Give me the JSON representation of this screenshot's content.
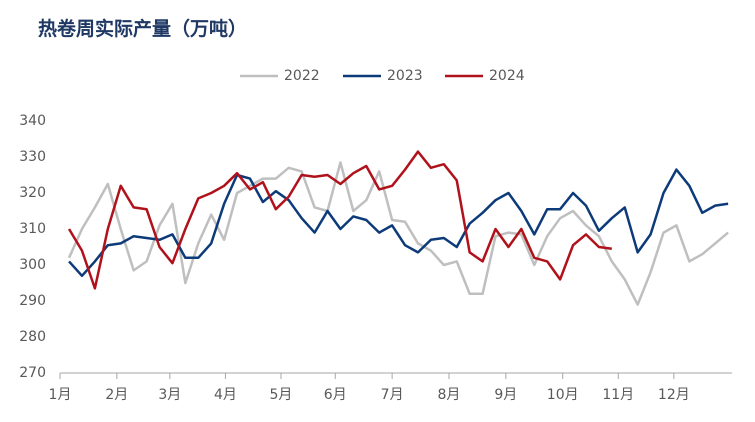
{
  "chart_data": {
    "type": "line",
    "title": "热卷周实际产量（万吨）",
    "x": [
      1,
      2,
      3,
      4,
      5,
      6,
      7,
      8,
      9,
      10,
      11,
      12,
      13,
      14,
      15,
      16,
      17,
      18,
      19,
      20,
      21,
      22,
      23,
      24,
      25,
      26,
      27,
      28,
      29,
      30,
      31,
      32,
      33,
      34,
      35,
      36,
      37,
      38,
      39,
      40,
      41,
      42,
      43,
      44,
      45,
      46,
      47,
      48,
      49,
      50,
      51,
      52
    ],
    "series": [
      {
        "name": "2022",
        "color": "#bfbfbf",
        "values": [
          302,
          310,
          316,
          322.5,
          310,
          298.5,
          301,
          311,
          317,
          295,
          306,
          314,
          307,
          320,
          322,
          324,
          324,
          327,
          326,
          316,
          315,
          328.5,
          315,
          318,
          326,
          312.5,
          312,
          306,
          304,
          300,
          301,
          292,
          292,
          308,
          309,
          308.5,
          300,
          308,
          313,
          315,
          311,
          308,
          301,
          296,
          289,
          298,
          309,
          311,
          301,
          303,
          306,
          309
        ]
      },
      {
        "name": "2023",
        "color": "#0d3b7a",
        "values": [
          301,
          297,
          301,
          305.5,
          306,
          308,
          307.5,
          307,
          308.5,
          302,
          302,
          306,
          317,
          325,
          324,
          317.5,
          320.5,
          318,
          313,
          309,
          315,
          310,
          313.5,
          312.5,
          309,
          311,
          305.5,
          303.5,
          307,
          307.5,
          305,
          311.5,
          314.5,
          318,
          320,
          315,
          308.5,
          315.5,
          315.5,
          320,
          316.5,
          309.5,
          313,
          316,
          303.5,
          308.5,
          320,
          326.5,
          322,
          314.5,
          316.5,
          317
        ]
      },
      {
        "name": "2024",
        "color": "#b0121b",
        "values": [
          310,
          304,
          293.5,
          310,
          322,
          316,
          315.5,
          305,
          300.5,
          310,
          318.5,
          320,
          322,
          325.5,
          321,
          323,
          315.5,
          319,
          325,
          324.5,
          325,
          322.5,
          325.5,
          327.5,
          321,
          322,
          326.5,
          331.5,
          327,
          328,
          323.5,
          303.5,
          301,
          310,
          305,
          310,
          302,
          301,
          296,
          305.5,
          308.5,
          305,
          304.5,
          null,
          null,
          null,
          null,
          null,
          null,
          null,
          null,
          null
        ]
      }
    ],
    "xlim": [
      0.3,
      52.3
    ],
    "xticks": [
      {
        "value": 0.3,
        "label": "1月"
      },
      {
        "value": 4.7,
        "label": "2月"
      },
      {
        "value": 8.8,
        "label": "3月"
      },
      {
        "value": 13.1,
        "label": "4月"
      },
      {
        "value": 17.4,
        "label": "5月"
      },
      {
        "value": 21.6,
        "label": "6月"
      },
      {
        "value": 26.0,
        "label": "7月"
      },
      {
        "value": 30.4,
        "label": "8月"
      },
      {
        "value": 34.8,
        "label": "9月"
      },
      {
        "value": 39.2,
        "label": "10月"
      },
      {
        "value": 43.5,
        "label": "11月"
      },
      {
        "value": 47.8,
        "label": "12月"
      }
    ],
    "ylim": [
      270,
      340
    ],
    "yticks": [
      270,
      280,
      290,
      300,
      310,
      320,
      330,
      340
    ],
    "grid": false
  }
}
